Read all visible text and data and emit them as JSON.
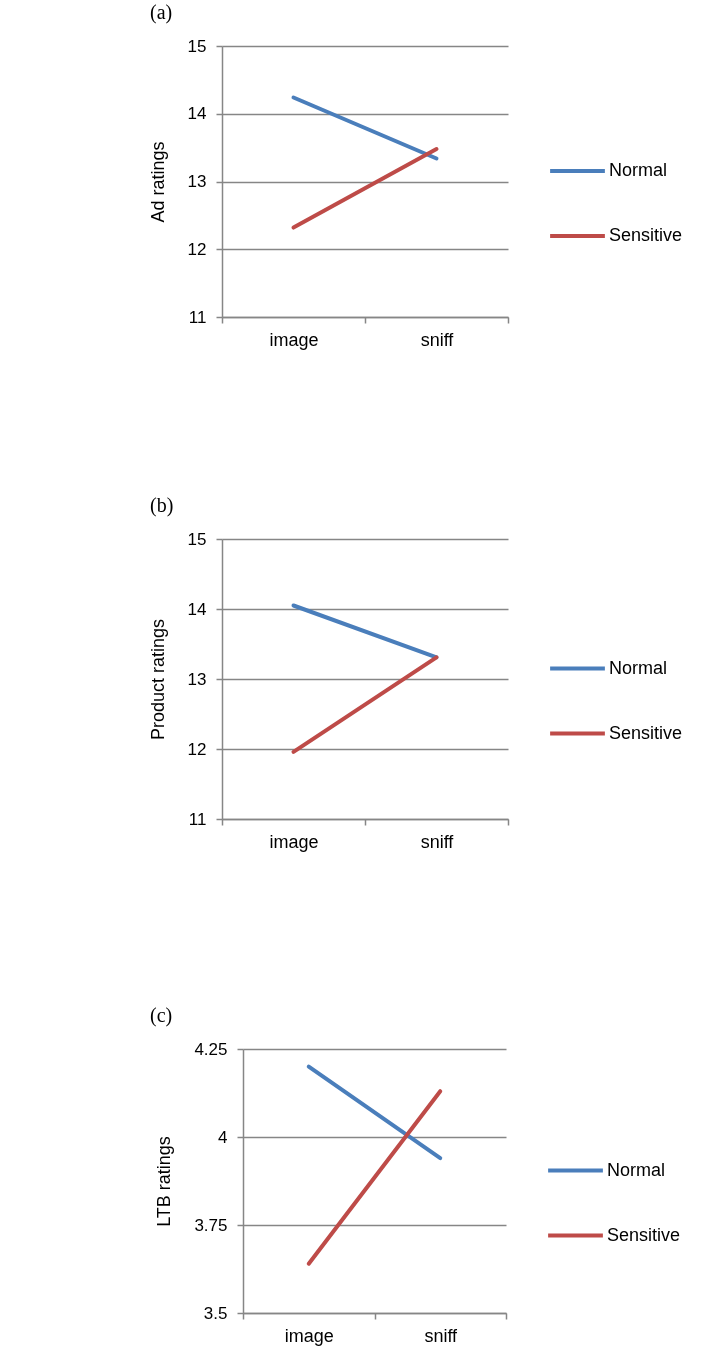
{
  "chart_data": [
    {
      "type": "line",
      "title": "(a)",
      "ylabel": "Ad ratings",
      "categories": [
        "image",
        "sniff"
      ],
      "series": [
        {
          "name": "Normal",
          "color": "#4a7ebb",
          "values": [
            14.24,
            13.34
          ]
        },
        {
          "name": "Sensitive",
          "color": "#be4b48",
          "values": [
            12.32,
            13.48
          ]
        }
      ],
      "ylim": [
        11,
        15
      ],
      "yticks": [
        11,
        12,
        13,
        14,
        15
      ],
      "grid": "y",
      "legend": "right",
      "line_style": "solid"
    },
    {
      "type": "line",
      "title": "(b)",
      "ylabel": "Product ratings",
      "categories": [
        "image",
        "sniff"
      ],
      "series": [
        {
          "name": "Normal",
          "color": "#4a7ebb",
          "values": [
            14.05,
            13.31
          ]
        },
        {
          "name": "Sensitive",
          "color": "#be4b48",
          "values": [
            11.96,
            13.31
          ]
        }
      ],
      "ylim": [
        11,
        15
      ],
      "yticks": [
        11,
        12,
        13,
        14,
        15
      ],
      "grid": "y",
      "legend": "right",
      "line_style": "solid"
    },
    {
      "type": "line",
      "title": "(c)",
      "ylabel": "LTB ratings",
      "categories": [
        "image",
        "sniff"
      ],
      "series": [
        {
          "name": "Normal",
          "color": "#4a7ebb",
          "values": [
            4.2,
            3.94
          ]
        },
        {
          "name": "Sensitive",
          "color": "#be4b48",
          "values": [
            3.64,
            4.13
          ]
        }
      ],
      "ylim": [
        3.5,
        4.25
      ],
      "yticks": [
        3.5,
        3.75,
        4,
        4.25
      ],
      "grid": "y",
      "legend": "right",
      "line_style": "solid"
    }
  ]
}
